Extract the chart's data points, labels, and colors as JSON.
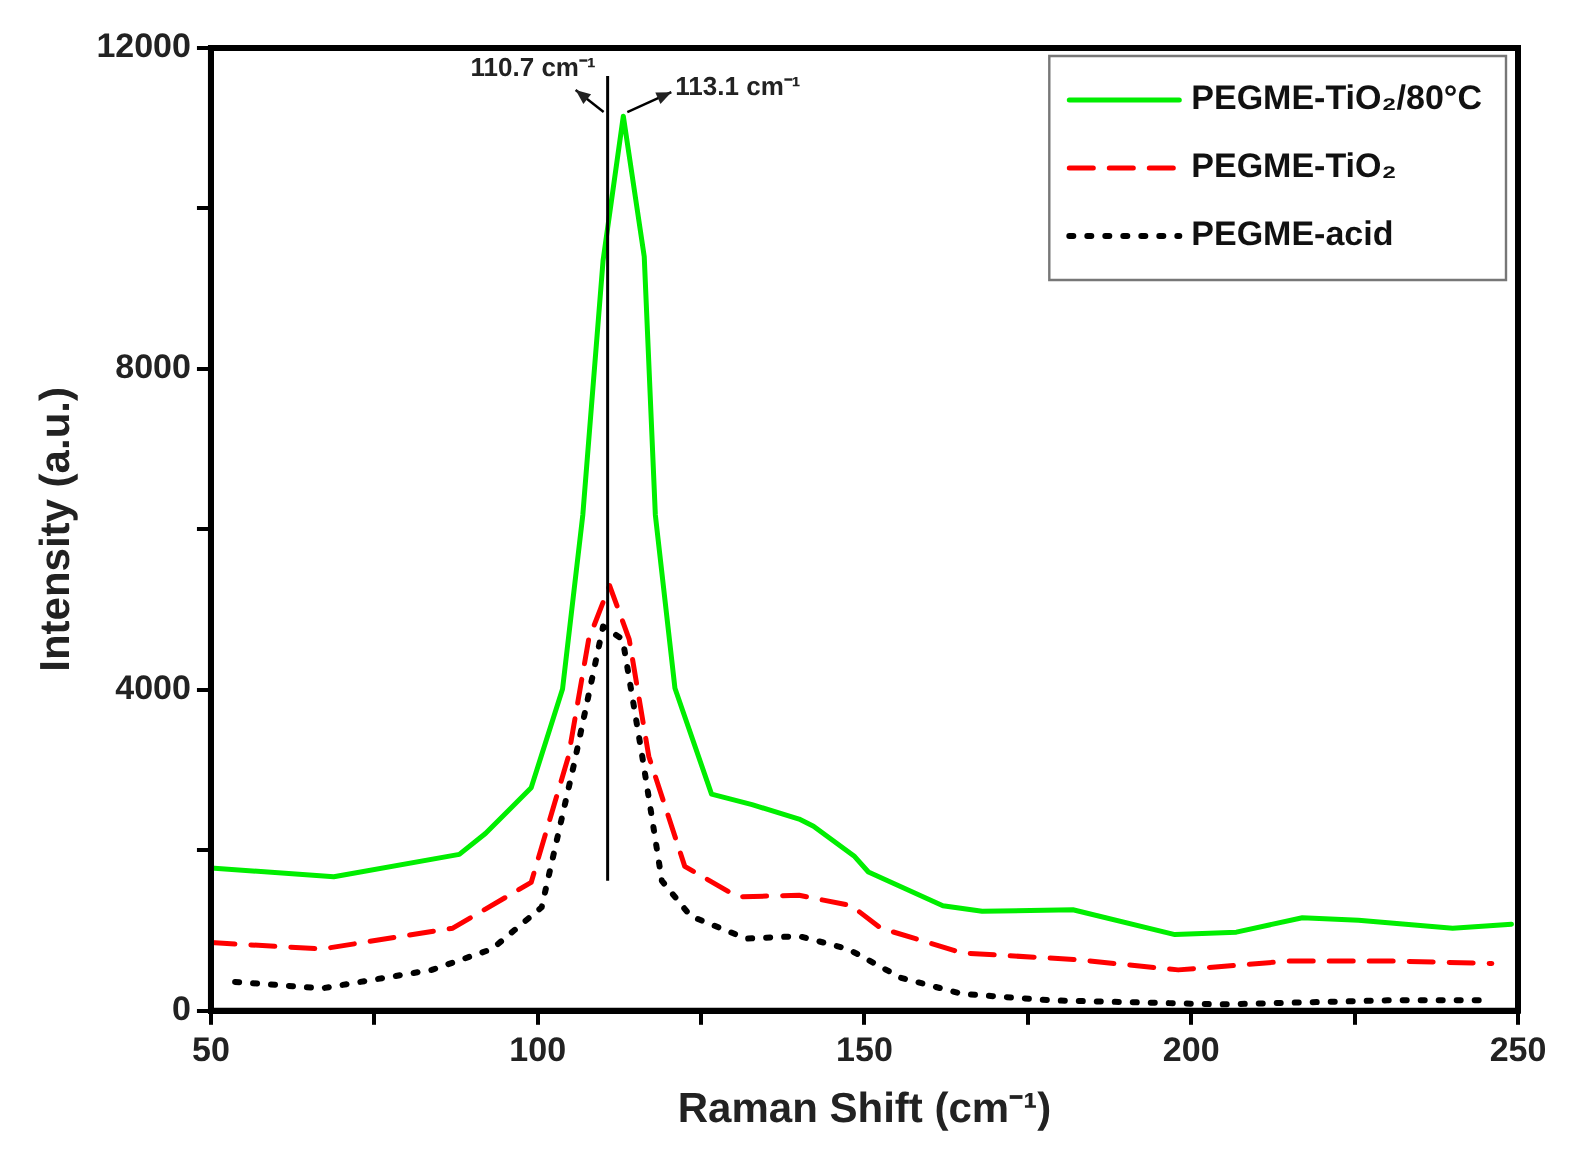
{
  "chart_data": {
    "type": "line",
    "xlabel": "Raman Shift (cm⁻¹)",
    "ylabel": "Intensity (a.u.)",
    "xlim": [
      50,
      250
    ],
    "xticks": [
      50,
      {
        "value": 75,
        "label": null
      },
      100,
      {
        "value": 125,
        "label": null
      },
      150,
      {
        "value": 175,
        "label": null
      },
      200,
      {
        "value": 225,
        "label": null
      },
      250
    ],
    "ylim": [
      0,
      12000
    ],
    "yticks": [
      0,
      {
        "value": 2000,
        "label": null
      },
      4000,
      {
        "value": 6000,
        "label": null
      },
      8000,
      {
        "value": 10000,
        "label": null
      },
      12000
    ],
    "grid": false,
    "legend": "top right",
    "marker": "none",
    "series": [
      {
        "name": "PEGME-TiO₂/80°C",
        "color": "#00ee00",
        "line_style": "solid",
        "x": [
          50,
          68.8,
          88,
          92,
          99,
          103.8,
          106.9,
          110,
          113.1,
          116.3,
          118,
          121,
          126.6,
          132.8,
          140,
          142.2,
          148.4,
          150.6,
          162,
          168,
          181.9,
          197.5,
          206.9,
          217,
          225.6,
          240,
          249
        ],
        "values": [
          1780,
          1670,
          1950,
          2210,
          2780,
          4010,
          6180,
          9350,
          11150,
          9400,
          6180,
          4020,
          2700,
          2570,
          2390,
          2300,
          1930,
          1730,
          1310,
          1240,
          1260,
          950,
          980,
          1160,
          1130,
          1030,
          1080
        ]
      },
      {
        "name": "PEGME-TiO₂",
        "color": "#ff0000",
        "line_style": "dashed",
        "x": [
          50,
          67,
          87,
          99,
          104.7,
          107.8,
          111,
          114,
          117,
          122.5,
          130.6,
          140,
          148,
          152.5,
          165,
          182,
          198,
          215,
          230.6,
          246
        ],
        "values": [
          850,
          770,
          1030,
          1600,
          3170,
          4630,
          5300,
          4630,
          3170,
          1800,
          1420,
          1440,
          1310,
          1030,
          720,
          640,
          510,
          620,
          620,
          590
        ]
      },
      {
        "name": "PEGME-acid",
        "color": "#000000",
        "line_style": "dotted",
        "x": [
          53.7,
          67,
          83.8,
          93,
          100.6,
          105.6,
          110,
          113,
          116,
          119,
          123.4,
          131.9,
          140,
          147.5,
          155.6,
          165,
          178.7,
          204.7,
          230,
          245
        ],
        "values": [
          360,
          280,
          510,
          770,
          1290,
          3090,
          4790,
          4630,
          3170,
          1620,
          1180,
          900,
          930,
          770,
          410,
          210,
          130,
          80,
          130,
          130
        ]
      }
    ],
    "ref_lines": [
      {
        "axis": "x",
        "value": 110.7,
        "label": "110.7 cm⁻¹",
        "color": "#000000",
        "line_style": "solid"
      }
    ],
    "annotations": [
      {
        "text": "113.1 cm⁻¹",
        "x": 113.1,
        "y": 11150
      }
    ]
  }
}
